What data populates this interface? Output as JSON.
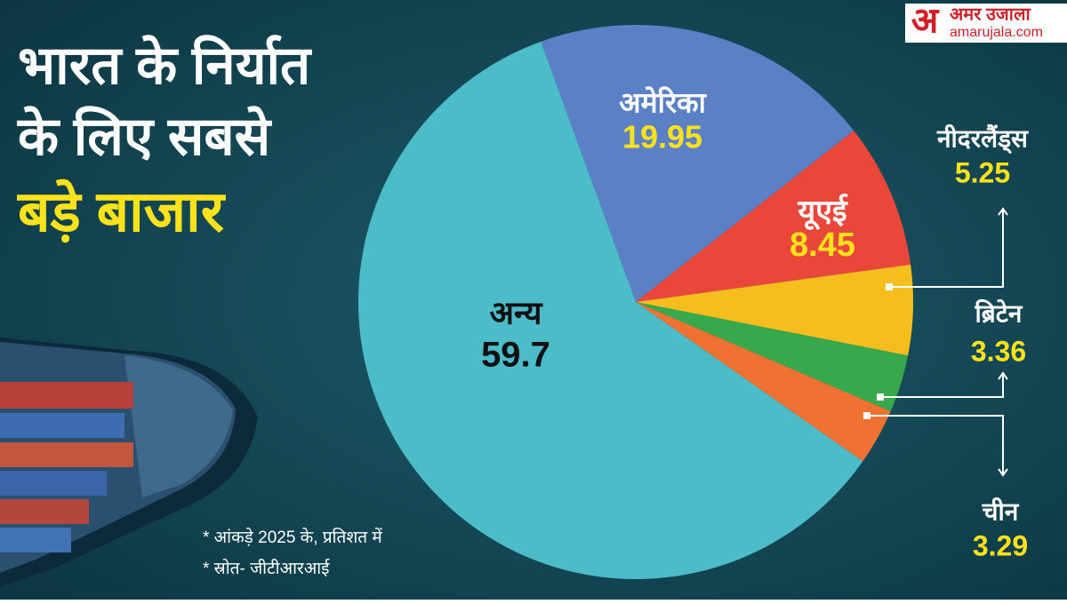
{
  "logo": {
    "mark": "अ",
    "name": "अमर उजाला",
    "site": "amarujala.com"
  },
  "chart_data": {
    "type": "pie",
    "title": [
      "भारत के निर्यात",
      "के लिए सबसे",
      "बड़े बाजार"
    ],
    "categories": [
      "अमेरिका",
      "यूएई",
      "नीदरलैंड्स",
      "ब्रिटेन",
      "चीन",
      "अन्य"
    ],
    "values": [
      19.95,
      8.45,
      5.25,
      3.36,
      3.29,
      59.7
    ],
    "colors": [
      "#5b80c6",
      "#e8473a",
      "#f5be1e",
      "#37a94c",
      "#f07233",
      "#4cbcc9"
    ],
    "notes": [
      "* आंकड़े 2025 के, प्रतिशत में",
      "* स्रोत- जीटीआरआई"
    ]
  }
}
